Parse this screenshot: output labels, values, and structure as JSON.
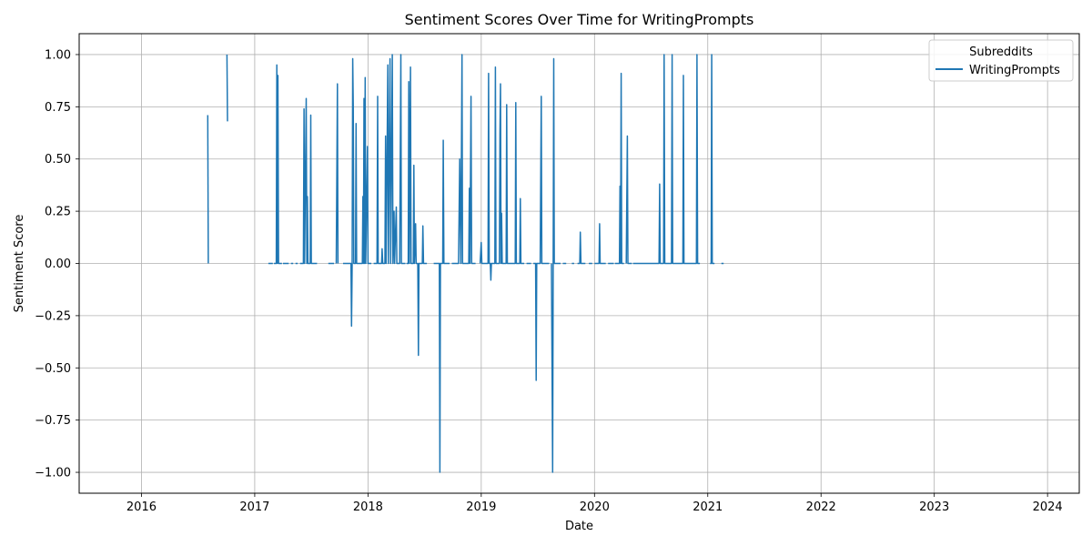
{
  "chart_data": {
    "type": "line",
    "title": "Sentiment Scores Over Time for WritingPrompts",
    "xlabel": "Date",
    "ylabel": "Sentiment Score",
    "xlim": [
      2015.45,
      2024.28
    ],
    "ylim": [
      -1.1,
      1.1
    ],
    "grid": true,
    "x_ticks": [
      2016,
      2017,
      2018,
      2019,
      2020,
      2021,
      2022,
      2023,
      2024
    ],
    "x_tick_labels": [
      "2016",
      "2017",
      "2018",
      "2019",
      "2020",
      "2021",
      "2022",
      "2023",
      "2024"
    ],
    "y_ticks": [
      -1.0,
      -0.75,
      -0.5,
      -0.25,
      0.0,
      0.25,
      0.5,
      0.75,
      1.0
    ],
    "y_tick_labels": [
      "−1.00",
      "−0.75",
      "−0.50",
      "−0.25",
      "0.00",
      "0.25",
      "0.50",
      "0.75",
      "1.00"
    ],
    "legend": {
      "title": "Subreddits",
      "position": "top-right"
    },
    "series": [
      {
        "name": "WritingPrompts",
        "color": "#1f77b4",
        "segments": [
          [
            [
              2016.585,
              0.71
            ],
            [
              2016.59,
              0.0
            ]
          ],
          [
            [
              2016.755,
              1.0
            ],
            [
              2016.76,
              0.68
            ]
          ],
          [
            [
              2017.12,
              0.0
            ],
            [
              2017.16,
              0.0
            ]
          ],
          [
            [
              2017.17,
              0.0
            ],
            [
              2017.19,
              0.0
            ],
            [
              2017.195,
              0.95
            ],
            [
              2017.2,
              0.0
            ],
            [
              2017.205,
              0.9
            ],
            [
              2017.21,
              0.0
            ],
            [
              2017.24,
              0.0
            ]
          ],
          [
            [
              2017.25,
              0.0
            ],
            [
              2017.3,
              0.0
            ]
          ],
          [
            [
              2017.32,
              0.0
            ],
            [
              2017.34,
              0.0
            ]
          ],
          [
            [
              2017.36,
              0.0
            ],
            [
              2017.38,
              0.0
            ]
          ],
          [
            [
              2017.4,
              0.0
            ],
            [
              2017.43,
              0.0
            ],
            [
              2017.435,
              0.74
            ],
            [
              2017.44,
              0.0
            ],
            [
              2017.455,
              0.79
            ],
            [
              2017.46,
              0.0
            ],
            [
              2017.465,
              0.32
            ],
            [
              2017.47,
              0.0
            ],
            [
              2017.49,
              0.0
            ],
            [
              2017.495,
              0.71
            ],
            [
              2017.5,
              0.0
            ],
            [
              2017.55,
              0.0
            ]
          ],
          [
            [
              2017.65,
              0.0
            ],
            [
              2017.7,
              0.0
            ]
          ],
          [
            [
              2017.72,
              0.0
            ],
            [
              2017.73,
              0.86
            ],
            [
              2017.735,
              0.0
            ]
          ],
          [
            [
              2017.78,
              0.0
            ],
            [
              2017.85,
              0.0
            ],
            [
              2017.855,
              -0.3
            ],
            [
              2017.86,
              0.0
            ],
            [
              2017.865,
              0.98
            ],
            [
              2017.87,
              0.75
            ],
            [
              2017.875,
              0.0
            ],
            [
              2017.89,
              0.0
            ],
            [
              2017.895,
              0.67
            ],
            [
              2017.9,
              0.0
            ],
            [
              2017.95,
              0.0
            ],
            [
              2017.955,
              0.32
            ],
            [
              2017.96,
              0.0
            ],
            [
              2017.965,
              0.79
            ],
            [
              2017.97,
              0.0
            ],
            [
              2017.975,
              0.89
            ],
            [
              2017.98,
              0.0
            ],
            [
              2017.995,
              0.56
            ],
            [
              2018.0,
              0.0
            ],
            [
              2018.03,
              0.0
            ]
          ],
          [
            [
              2018.05,
              0.0
            ],
            [
              2018.08,
              0.0
            ],
            [
              2018.085,
              0.8
            ],
            [
              2018.09,
              0.0
            ],
            [
              2018.12,
              0.0
            ],
            [
              2018.125,
              0.07
            ],
            [
              2018.13,
              0.0
            ],
            [
              2018.15,
              0.0
            ],
            [
              2018.155,
              0.61
            ],
            [
              2018.16,
              0.0
            ],
            [
              2018.175,
              0.95
            ],
            [
              2018.18,
              0.0
            ],
            [
              2018.195,
              0.98
            ],
            [
              2018.2,
              0.0
            ],
            [
              2018.215,
              1.0
            ],
            [
              2018.22,
              0.0
            ],
            [
              2018.23,
              0.25
            ],
            [
              2018.235,
              0.0
            ],
            [
              2018.25,
              0.27
            ],
            [
              2018.255,
              0.0
            ],
            [
              2018.28,
              0.0
            ],
            [
              2018.29,
              1.0
            ],
            [
              2018.295,
              0.0
            ],
            [
              2018.33,
              0.0
            ]
          ],
          [
            [
              2018.34,
              0.0
            ],
            [
              2018.355,
              0.0
            ],
            [
              2018.36,
              0.87
            ],
            [
              2018.365,
              0.0
            ],
            [
              2018.375,
              0.94
            ],
            [
              2018.38,
              0.0
            ],
            [
              2018.4,
              0.0
            ],
            [
              2018.405,
              0.47
            ],
            [
              2018.41,
              0.0
            ],
            [
              2018.42,
              0.19
            ],
            [
              2018.425,
              0.0
            ],
            [
              2018.44,
              0.0
            ],
            [
              2018.445,
              -0.44
            ],
            [
              2018.45,
              0.0
            ],
            [
              2018.48,
              0.0
            ],
            [
              2018.485,
              0.18
            ],
            [
              2018.49,
              0.0
            ],
            [
              2018.52,
              0.0
            ]
          ],
          [
            [
              2018.58,
              0.0
            ],
            [
              2018.63,
              0.0
            ],
            [
              2018.635,
              -1.0
            ],
            [
              2018.64,
              0.0
            ],
            [
              2018.66,
              0.0
            ],
            [
              2018.665,
              0.59
            ],
            [
              2018.67,
              0.0
            ],
            [
              2018.72,
              0.0
            ]
          ],
          [
            [
              2018.74,
              0.0
            ],
            [
              2018.8,
              0.0
            ],
            [
              2018.81,
              0.5
            ],
            [
              2018.815,
              0.22
            ],
            [
              2018.82,
              0.0
            ],
            [
              2018.83,
              1.0
            ],
            [
              2018.835,
              0.0
            ],
            [
              2018.89,
              0.0
            ],
            [
              2018.895,
              0.36
            ],
            [
              2018.9,
              0.0
            ],
            [
              2018.91,
              0.8
            ],
            [
              2018.915,
              0.0
            ],
            [
              2018.95,
              0.0
            ]
          ],
          [
            [
              2018.99,
              0.0
            ],
            [
              2019.0,
              0.1
            ],
            [
              2019.005,
              0.0
            ],
            [
              2019.06,
              0.0
            ],
            [
              2019.065,
              0.91
            ],
            [
              2019.07,
              0.0
            ],
            [
              2019.08,
              0.0
            ],
            [
              2019.085,
              -0.08
            ],
            [
              2019.09,
              0.0
            ],
            [
              2019.12,
              0.0
            ],
            [
              2019.125,
              0.94
            ],
            [
              2019.13,
              0.0
            ],
            [
              2019.16,
              0.0
            ],
            [
              2019.165,
              0.62
            ],
            [
              2019.17,
              0.86
            ],
            [
              2019.175,
              0.0
            ],
            [
              2019.18,
              0.24
            ],
            [
              2019.185,
              0.0
            ],
            [
              2019.22,
              0.0
            ],
            [
              2019.225,
              0.76
            ],
            [
              2019.23,
              0.0
            ],
            [
              2019.3,
              0.0
            ],
            [
              2019.305,
              0.77
            ],
            [
              2019.31,
              0.0
            ],
            [
              2019.34,
              0.0
            ],
            [
              2019.345,
              0.31
            ],
            [
              2019.35,
              0.0
            ],
            [
              2019.38,
              0.0
            ]
          ],
          [
            [
              2019.4,
              0.0
            ],
            [
              2019.44,
              0.0
            ]
          ],
          [
            [
              2019.46,
              0.0
            ],
            [
              2019.48,
              0.0
            ],
            [
              2019.485,
              -0.56
            ],
            [
              2019.49,
              0.0
            ],
            [
              2019.52,
              0.0
            ],
            [
              2019.53,
              0.8
            ],
            [
              2019.535,
              0.0
            ],
            [
              2019.6,
              0.0
            ]
          ],
          [
            [
              2019.62,
              0.0
            ],
            [
              2019.63,
              -1.0
            ],
            [
              2019.635,
              0.0
            ],
            [
              2019.64,
              0.98
            ],
            [
              2019.645,
              0.0
            ],
            [
              2019.7,
              0.0
            ]
          ],
          [
            [
              2019.72,
              0.0
            ],
            [
              2019.75,
              0.0
            ]
          ],
          [
            [
              2019.8,
              0.0
            ],
            [
              2019.82,
              0.0
            ]
          ],
          [
            [
              2019.85,
              0.0
            ],
            [
              2019.87,
              0.0
            ],
            [
              2019.875,
              0.15
            ],
            [
              2019.88,
              0.0
            ],
            [
              2019.92,
              0.0
            ]
          ],
          [
            [
              2019.95,
              0.0
            ],
            [
              2019.98,
              0.0
            ]
          ],
          [
            [
              2020.0,
              0.0
            ],
            [
              2020.04,
              0.0
            ],
            [
              2020.045,
              0.19
            ],
            [
              2020.05,
              0.0
            ],
            [
              2020.1,
              0.0
            ]
          ],
          [
            [
              2020.12,
              0.0
            ],
            [
              2020.17,
              0.0
            ]
          ],
          [
            [
              2020.18,
              0.0
            ],
            [
              2020.22,
              0.0
            ],
            [
              2020.225,
              0.37
            ],
            [
              2020.23,
              0.0
            ],
            [
              2020.235,
              0.91
            ],
            [
              2020.24,
              0.0
            ],
            [
              2020.26,
              0.0
            ]
          ],
          [
            [
              2020.28,
              0.0
            ],
            [
              2020.29,
              0.61
            ],
            [
              2020.295,
              0.0
            ],
            [
              2020.33,
              0.0
            ]
          ],
          [
            [
              2020.34,
              0.0
            ],
            [
              2020.4,
              0.0
            ],
            [
              2020.5,
              0.0
            ],
            [
              2020.57,
              0.0
            ],
            [
              2020.575,
              0.38
            ],
            [
              2020.58,
              0.0
            ],
            [
              2020.61,
              0.0
            ],
            [
              2020.615,
              1.0
            ],
            [
              2020.62,
              0.0
            ],
            [
              2020.68,
              0.0
            ],
            [
              2020.685,
              1.0
            ],
            [
              2020.69,
              0.0
            ],
            [
              2020.78,
              0.0
            ],
            [
              2020.785,
              0.9
            ],
            [
              2020.79,
              0.0
            ],
            [
              2020.9,
              0.0
            ],
            [
              2020.905,
              1.0
            ],
            [
              2020.91,
              0.0
            ],
            [
              2020.93,
              0.0
            ]
          ],
          [
            [
              2021.02,
              0.0
            ],
            [
              2021.03,
              0.0
            ],
            [
              2021.035,
              1.0
            ],
            [
              2021.04,
              0.0
            ],
            [
              2021.06,
              0.0
            ]
          ],
          [
            [
              2021.12,
              0.0
            ],
            [
              2021.14,
              0.0
            ]
          ]
        ]
      }
    ]
  }
}
